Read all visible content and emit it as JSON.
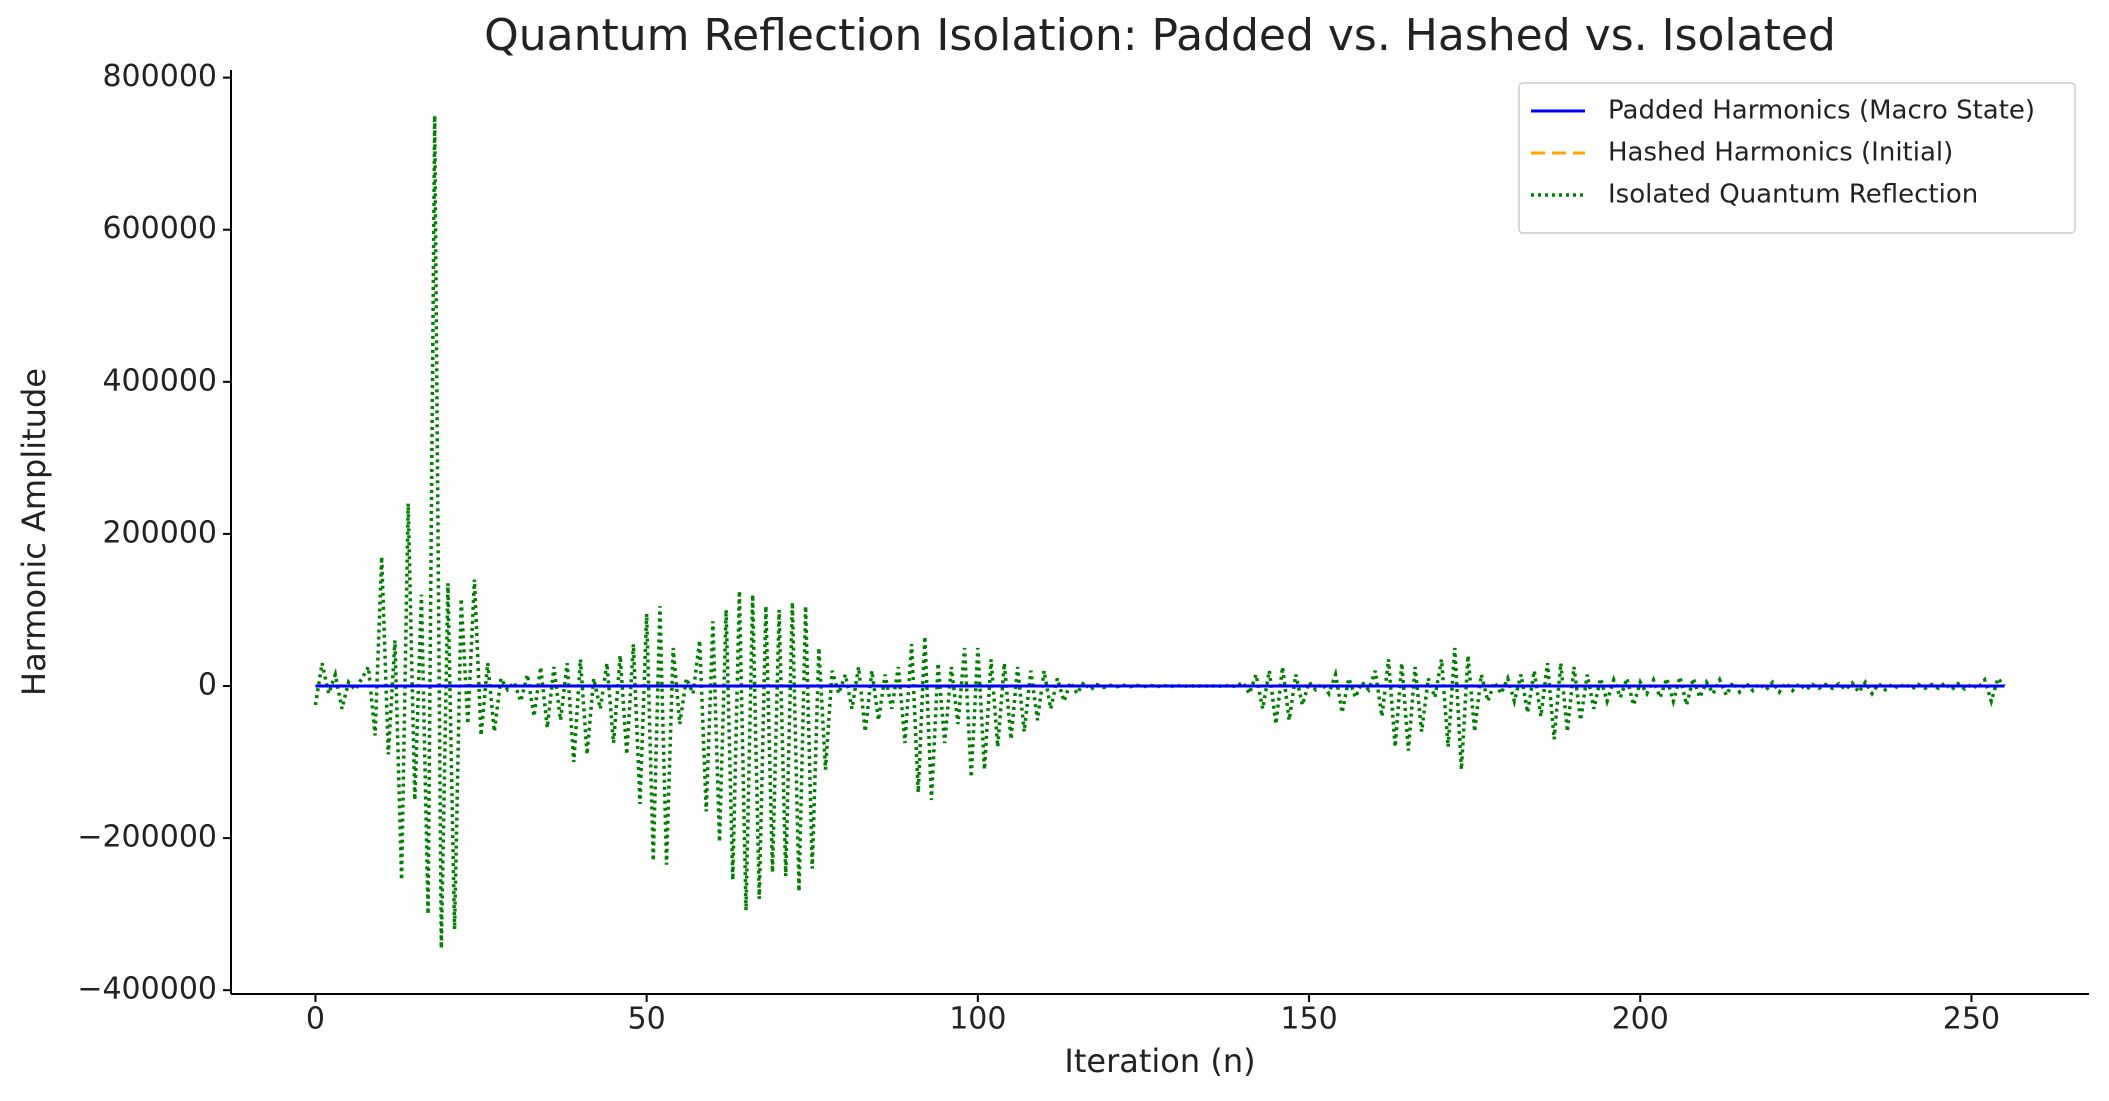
{
  "chart_data": {
    "type": "line",
    "title": "Quantum Reflection Isolation: Padded vs. Hashed vs. Isolated",
    "x_label": "Iteration (n)",
    "y_label": "Harmonic Amplitude",
    "xlim": [
      -12.75,
      267.75
    ],
    "ylim": [
      -405000,
      810000
    ],
    "xticks": [
      0,
      50,
      100,
      150,
      200,
      250
    ],
    "yticks": [
      {
        "value": -400000,
        "label": "−400000"
      },
      {
        "value": -200000,
        "label": "−200000"
      },
      0,
      200000,
      400000,
      600000,
      800000
    ],
    "legend": "upper right",
    "x": [
      0,
      1,
      2,
      3,
      4,
      5,
      6,
      7,
      8,
      9,
      10,
      11,
      12,
      13,
      14,
      15,
      16,
      17,
      18,
      19,
      20,
      21,
      22,
      23,
      24,
      25,
      26,
      27,
      28,
      29,
      30,
      31,
      32,
      33,
      34,
      35,
      36,
      37,
      38,
      39,
      40,
      41,
      42,
      43,
      44,
      45,
      46,
      47,
      48,
      49,
      50,
      51,
      52,
      53,
      54,
      55,
      56,
      57,
      58,
      59,
      60,
      61,
      62,
      63,
      64,
      65,
      66,
      67,
      68,
      69,
      70,
      71,
      72,
      73,
      74,
      75,
      76,
      77,
      78,
      79,
      80,
      81,
      82,
      83,
      84,
      85,
      86,
      87,
      88,
      89,
      90,
      91,
      92,
      93,
      94,
      95,
      96,
      97,
      98,
      99,
      100,
      101,
      102,
      103,
      104,
      105,
      106,
      107,
      108,
      109,
      110,
      111,
      112,
      113,
      114,
      115,
      116,
      117,
      118,
      119,
      120,
      121,
      122,
      123,
      124,
      125,
      126,
      127,
      128,
      129,
      130,
      131,
      132,
      133,
      134,
      135,
      136,
      137,
      138,
      139,
      140,
      141,
      142,
      143,
      144,
      145,
      146,
      147,
      148,
      149,
      150,
      151,
      152,
      153,
      154,
      155,
      156,
      157,
      158,
      159,
      160,
      161,
      162,
      163,
      164,
      165,
      166,
      167,
      168,
      169,
      170,
      171,
      172,
      173,
      174,
      175,
      176,
      177,
      178,
      179,
      180,
      181,
      182,
      183,
      184,
      185,
      186,
      187,
      188,
      189,
      190,
      191,
      192,
      193,
      194,
      195,
      196,
      197,
      198,
      199,
      200,
      201,
      202,
      203,
      204,
      205,
      206,
      207,
      208,
      209,
      210,
      211,
      212,
      213,
      214,
      215,
      216,
      217,
      218,
      219,
      220,
      221,
      222,
      223,
      224,
      225,
      226,
      227,
      228,
      229,
      230,
      231,
      232,
      233,
      234,
      235,
      236,
      237,
      238,
      239,
      240,
      241,
      242,
      243,
      244,
      245,
      246,
      247,
      248,
      249,
      250,
      251,
      252,
      253,
      254,
      255
    ],
    "series": [
      {
        "name": "Padded Harmonics (Macro State)",
        "color": "#0000ff",
        "style": "solid",
        "values": [
          0,
          0,
          0,
          0,
          0,
          0,
          0,
          0,
          0,
          0,
          0,
          0,
          0,
          0,
          0,
          0,
          0,
          0,
          0,
          0,
          0,
          0,
          0,
          0,
          0,
          0,
          0,
          0,
          0,
          0,
          0,
          0,
          0,
          0,
          0,
          0,
          0,
          0,
          0,
          0,
          0,
          0,
          0,
          0,
          0,
          0,
          0,
          0,
          0,
          0,
          0,
          0,
          0,
          0,
          0,
          0,
          0,
          0,
          0,
          0,
          0,
          0,
          0,
          0,
          0,
          0,
          0,
          0,
          0,
          0,
          0,
          0,
          0,
          0,
          0,
          0,
          0,
          0,
          0,
          0,
          0,
          0,
          0,
          0,
          0,
          0,
          0,
          0,
          0,
          0,
          0,
          0,
          0,
          0,
          0,
          0,
          0,
          0,
          0,
          0,
          0,
          0,
          0,
          0,
          0,
          0,
          0,
          0,
          0,
          0,
          0,
          0,
          0,
          0,
          0,
          0,
          0,
          0,
          0,
          0,
          0,
          0,
          0,
          0,
          0,
          0,
          0,
          0,
          0,
          0,
          0,
          0,
          0,
          0,
          0,
          0,
          0,
          0,
          0,
          0,
          0,
          0,
          0,
          0,
          0,
          0,
          0,
          0,
          0,
          0,
          0,
          0,
          0,
          0,
          0,
          0,
          0,
          0,
          0,
          0,
          0,
          0,
          0,
          0,
          0,
          0,
          0,
          0,
          0,
          0,
          0,
          0,
          0,
          0,
          0,
          0,
          0,
          0,
          0,
          0,
          0,
          0,
          0,
          0,
          0,
          0,
          0,
          0,
          0,
          0,
          0,
          0,
          0,
          0,
          0,
          0,
          0,
          0,
          0,
          0,
          0,
          0,
          0,
          0,
          0,
          0,
          0,
          0,
          0,
          0,
          0,
          0,
          0,
          0,
          0,
          0,
          0,
          0,
          0,
          0,
          0,
          0,
          0,
          0,
          0,
          0,
          0,
          0,
          0,
          0,
          0,
          0,
          0,
          0,
          0,
          0,
          0,
          0,
          0,
          0,
          0,
          0,
          0,
          0,
          0,
          0,
          0,
          0,
          0,
          0,
          0,
          0,
          0,
          0,
          0,
          0
        ]
      },
      {
        "name": "Hashed Harmonics (Initial)",
        "color": "#ffa500",
        "style": "dashed",
        "values": [
          0,
          0,
          0,
          0,
          0,
          0,
          0,
          0,
          0,
          0,
          0,
          0,
          0,
          0,
          0,
          0,
          0,
          0,
          0,
          0,
          0,
          0,
          0,
          0,
          0,
          0,
          0,
          0,
          0,
          0,
          0,
          0,
          0,
          0,
          0,
          0,
          0,
          0,
          0,
          0,
          0,
          0,
          0,
          0,
          0,
          0,
          0,
          0,
          0,
          0,
          0,
          0,
          0,
          0,
          0,
          0,
          0,
          0,
          0,
          0,
          0,
          0,
          0,
          0,
          0,
          0,
          0,
          0,
          0,
          0,
          0,
          0,
          0,
          0,
          0,
          0,
          0,
          0,
          0,
          0,
          0,
          0,
          0,
          0,
          0,
          0,
          0,
          0,
          0,
          0,
          0,
          0,
          0,
          0,
          0,
          0,
          0,
          0,
          0,
          0,
          0,
          0,
          0,
          0,
          0,
          0,
          0,
          0,
          0,
          0,
          0,
          0,
          0,
          0,
          0,
          0,
          0,
          0,
          0,
          0,
          0,
          0,
          0,
          0,
          0,
          0,
          0,
          0,
          0,
          0,
          0,
          0,
          0,
          0,
          0,
          0,
          0,
          0,
          0,
          0,
          0,
          0,
          0,
          0,
          0,
          0,
          0,
          0,
          0,
          0,
          0,
          0,
          0,
          0,
          0,
          0,
          0,
          0,
          0,
          0,
          0,
          0,
          0,
          0,
          0,
          0,
          0,
          0,
          0,
          0,
          0,
          0,
          0,
          0,
          0,
          0,
          0,
          0,
          0,
          0,
          0,
          0,
          0,
          0,
          0,
          0,
          0,
          0,
          0,
          0,
          0,
          0,
          0,
          0,
          0,
          0,
          0,
          0,
          0,
          0,
          0,
          0,
          0,
          0,
          0,
          0,
          0,
          0,
          0,
          0,
          0,
          0,
          0,
          0,
          0,
          0,
          0,
          0,
          0,
          0,
          0,
          0,
          0,
          0,
          0,
          0,
          0,
          0,
          0,
          0,
          0,
          0,
          0,
          0,
          0,
          0,
          0,
          0,
          0,
          0,
          0,
          0,
          0,
          0,
          0,
          0,
          0,
          0,
          0,
          0,
          0,
          0,
          0,
          0,
          0,
          0
        ]
      },
      {
        "name": "Isolated Quantum Reflection",
        "color": "#008000",
        "style": "dotted",
        "values": [
          -25000,
          30000,
          -10000,
          15000,
          -30000,
          5000,
          -5000,
          10000,
          25000,
          -65000,
          170000,
          -90000,
          60000,
          -255000,
          240000,
          -150000,
          120000,
          -300000,
          750000,
          -345000,
          135000,
          -320000,
          115000,
          -50000,
          140000,
          -65000,
          30000,
          -60000,
          10000,
          -5000,
          5000,
          -20000,
          15000,
          -40000,
          25000,
          -55000,
          25000,
          -45000,
          30000,
          -100000,
          35000,
          -90000,
          10000,
          -30000,
          30000,
          -75000,
          40000,
          -90000,
          55000,
          -155000,
          95000,
          -230000,
          105000,
          -235000,
          50000,
          -50000,
          10000,
          -10000,
          60000,
          -165000,
          85000,
          -205000,
          100000,
          -255000,
          125000,
          -295000,
          120000,
          -280000,
          105000,
          -245000,
          100000,
          -250000,
          110000,
          -270000,
          105000,
          -240000,
          50000,
          -110000,
          20000,
          -10000,
          15000,
          -30000,
          25000,
          -60000,
          20000,
          -45000,
          15000,
          -30000,
          25000,
          -75000,
          55000,
          -140000,
          65000,
          -150000,
          30000,
          -75000,
          25000,
          -50000,
          50000,
          -120000,
          50000,
          -110000,
          35000,
          -80000,
          30000,
          -70000,
          25000,
          -60000,
          20000,
          -45000,
          20000,
          -30000,
          10000,
          -20000,
          5000,
          -10000,
          5000,
          -5000,
          2000,
          -2000,
          1000,
          -1000,
          1000,
          -1000,
          1000,
          -1000,
          1000,
          -1000,
          1000,
          -1000,
          1000,
          -1000,
          1000,
          -1000,
          1000,
          -1000,
          1000,
          -1000,
          1000,
          -1000,
          5000,
          -10000,
          15000,
          -30000,
          20000,
          -50000,
          25000,
          -45000,
          15000,
          -25000,
          5000,
          -5000,
          3000,
          -10000,
          15000,
          -35000,
          10000,
          -15000,
          5000,
          -5000,
          20000,
          -40000,
          35000,
          -80000,
          30000,
          -85000,
          25000,
          -60000,
          10000,
          -15000,
          35000,
          -80000,
          50000,
          -110000,
          40000,
          -60000,
          15000,
          -20000,
          5000,
          -10000,
          10000,
          -20000,
          15000,
          -35000,
          20000,
          -40000,
          30000,
          -70000,
          30000,
          -60000,
          25000,
          -45000,
          15000,
          -30000,
          10000,
          -20000,
          8000,
          -15000,
          10000,
          -25000,
          5000,
          -10000,
          8000,
          -15000,
          10000,
          -20000,
          12000,
          -25000,
          10000,
          -15000,
          5000,
          -10000,
          8000,
          -12000,
          5000,
          -8000,
          4000,
          -6000,
          3000,
          -5000,
          5000,
          -8000,
          4000,
          -6000,
          3000,
          -5000,
          2000,
          -3000,
          2000,
          -3000,
          3000,
          -5000,
          4000,
          -8000,
          5000,
          -10000,
          3000,
          -5000,
          2000,
          -3000,
          3000,
          -4000,
          2000,
          -3000,
          2000,
          -3000,
          4000,
          -5000,
          3000,
          -4000,
          2000,
          -3000,
          8000,
          -20000,
          10000,
          0
        ]
      }
    ]
  }
}
